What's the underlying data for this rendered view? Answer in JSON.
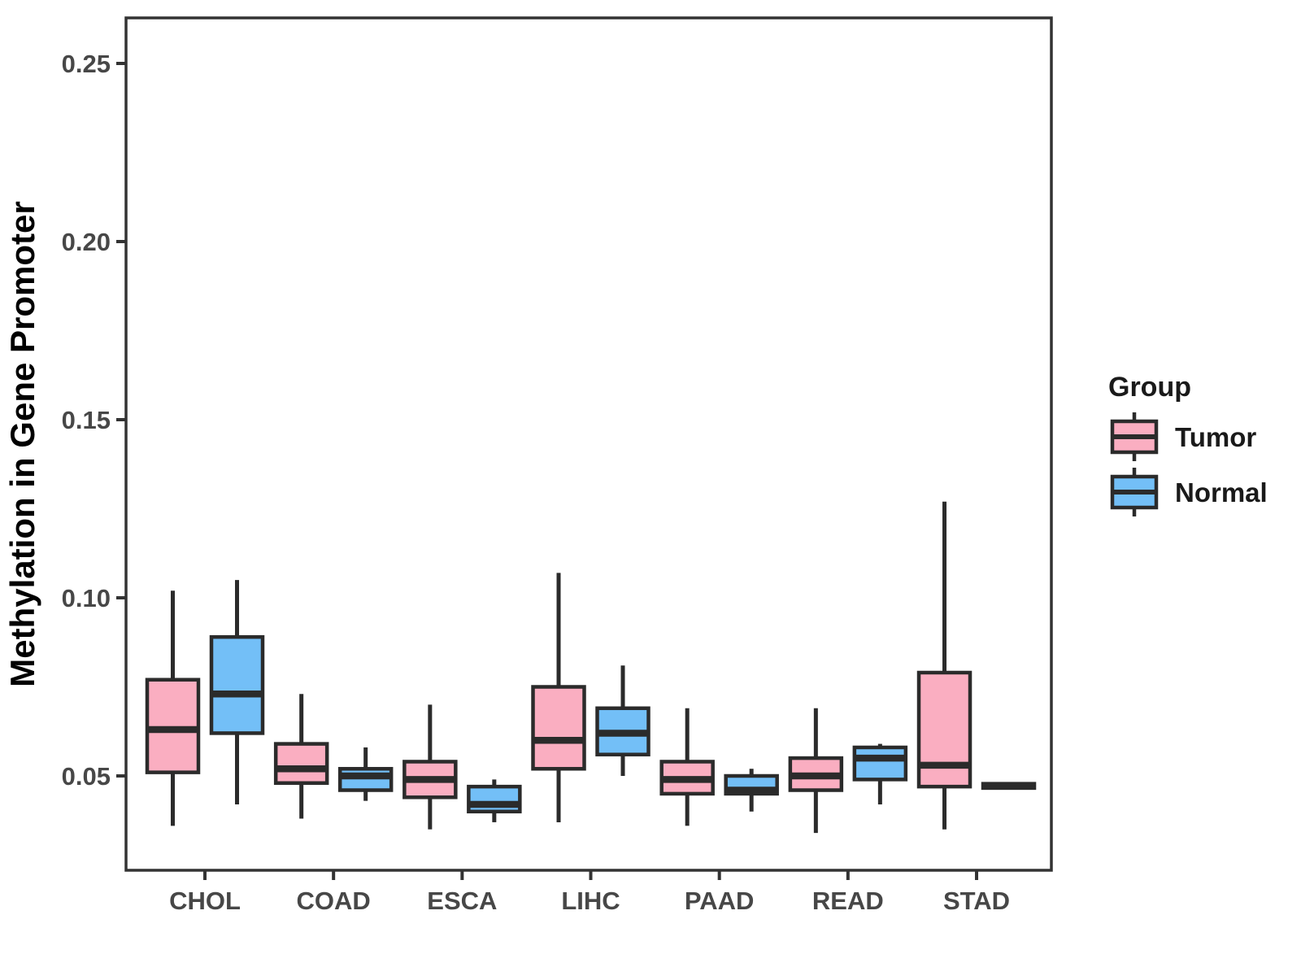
{
  "figure": {
    "background": "#ffffff",
    "panel_border_color": "#333333",
    "axis_text_color": "#474747",
    "box_border_color": "#2b2b2b"
  },
  "chart_data": {
    "type": "boxplot",
    "title": "",
    "xlabel": "",
    "ylabel": "Methylation in Gene Promoter",
    "categories": [
      "CHOL",
      "COAD",
      "ESCA",
      "LIHC",
      "PAAD",
      "READ",
      "STAD"
    ],
    "y_ticks": [
      0.05,
      0.1,
      0.15,
      0.2,
      0.25
    ],
    "ylim": [
      0.023,
      0.263
    ],
    "grid": false,
    "legend": {
      "title": "Group",
      "position": "right",
      "entries": [
        {
          "label": "Tumor",
          "color": "#FAAEC1"
        },
        {
          "label": "Normal",
          "color": "#73BFF7"
        }
      ]
    },
    "series": [
      {
        "name": "Tumor",
        "color": "#FAAEC1",
        "boxes": [
          {
            "category": "CHOL",
            "low": 0.036,
            "q1": 0.051,
            "median": 0.063,
            "q3": 0.077,
            "high": 0.102
          },
          {
            "category": "COAD",
            "low": 0.038,
            "q1": 0.048,
            "median": 0.052,
            "q3": 0.059,
            "high": 0.073
          },
          {
            "category": "ESCA",
            "low": 0.035,
            "q1": 0.044,
            "median": 0.049,
            "q3": 0.054,
            "high": 0.07
          },
          {
            "category": "LIHC",
            "low": 0.037,
            "q1": 0.052,
            "median": 0.06,
            "q3": 0.075,
            "high": 0.107
          },
          {
            "category": "PAAD",
            "low": 0.036,
            "q1": 0.045,
            "median": 0.049,
            "q3": 0.054,
            "high": 0.069
          },
          {
            "category": "READ",
            "low": 0.034,
            "q1": 0.046,
            "median": 0.05,
            "q3": 0.055,
            "high": 0.069
          },
          {
            "category": "STAD",
            "low": 0.035,
            "q1": 0.047,
            "median": 0.053,
            "q3": 0.079,
            "high": 0.127
          }
        ]
      },
      {
        "name": "Normal",
        "color": "#73BFF7",
        "boxes": [
          {
            "category": "CHOL",
            "low": 0.042,
            "q1": 0.062,
            "median": 0.073,
            "q3": 0.089,
            "high": 0.105
          },
          {
            "category": "COAD",
            "low": 0.043,
            "q1": 0.046,
            "median": 0.05,
            "q3": 0.052,
            "high": 0.058
          },
          {
            "category": "ESCA",
            "low": 0.037,
            "q1": 0.04,
            "median": 0.042,
            "q3": 0.047,
            "high": 0.049
          },
          {
            "category": "LIHC",
            "low": 0.05,
            "q1": 0.056,
            "median": 0.062,
            "q3": 0.069,
            "high": 0.081
          },
          {
            "category": "PAAD",
            "low": 0.04,
            "q1": 0.045,
            "median": 0.046,
            "q3": 0.05,
            "high": 0.052
          },
          {
            "category": "READ",
            "low": 0.042,
            "q1": 0.049,
            "median": 0.055,
            "q3": 0.058,
            "high": 0.059
          },
          {
            "category": "STAD",
            "low": 0.0462,
            "q1": 0.0466,
            "median": 0.0472,
            "q3": 0.0478,
            "high": 0.0482
          }
        ]
      }
    ]
  }
}
